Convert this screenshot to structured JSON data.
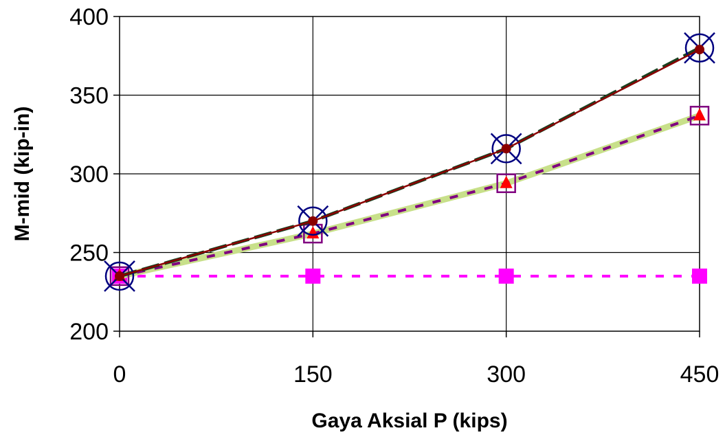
{
  "chart_data": {
    "type": "line",
    "title": "",
    "xlabel": "Gaya Aksial P (kips)",
    "ylabel": "M-mid (kip-in)",
    "x": [
      0,
      150,
      300,
      450
    ],
    "xticks": [
      "0",
      "150",
      "300",
      "450"
    ],
    "yticks": [
      "200",
      "250",
      "300",
      "350",
      "400"
    ],
    "xlim": [
      0,
      450
    ],
    "ylim": [
      200,
      400
    ],
    "grid": true,
    "legend": "none",
    "series": [
      {
        "values": [
          235,
          235,
          235,
          235
        ],
        "color": "#ff00ff",
        "line": "dotted",
        "marker": "filled-square"
      },
      {
        "values": [
          235,
          262,
          294,
          337
        ],
        "color": "#c8e08a",
        "line": "thick-solid",
        "marker": "none"
      },
      {
        "values": [
          235,
          262,
          294,
          337
        ],
        "color": "#800080",
        "line": "dotted",
        "marker": "open-square"
      },
      {
        "values": [
          235,
          262,
          294,
          337
        ],
        "color": "#ff0000",
        "line": "none",
        "marker": "filled-triangle"
      },
      {
        "values": [
          235,
          270,
          316,
          380
        ],
        "color": "#1a4020",
        "line": "dashed",
        "marker": "none"
      },
      {
        "values": [
          235,
          270,
          316,
          380
        ],
        "color": "#000080",
        "line": "none",
        "marker": "circle-x"
      },
      {
        "values": [
          235,
          270,
          316,
          379
        ],
        "color": "#8b0000",
        "line": "solid",
        "marker": "filled-circle"
      }
    ]
  }
}
